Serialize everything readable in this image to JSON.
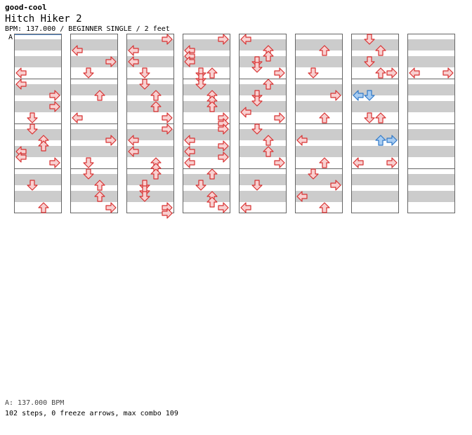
{
  "site": "good-cool",
  "song": {
    "title": "Hitch Hiker 2",
    "meta": "BPM: 137.000 / BEGINNER SINGLE / 2 feet",
    "bpm_marker": "A",
    "bpm_line": "A: 137.000 BPM",
    "summary": "102 steps, 0 freeze arrows, max combo 109"
  },
  "colors": {
    "normal_fill": "#f8d0d0",
    "normal_stroke": "#d83030",
    "special_fill": "#a9cdf2",
    "special_stroke": "#2f78c8",
    "band": "#cccccc",
    "border": "#666666"
  },
  "chart": {
    "columns": 8,
    "measures_per_column": 4,
    "rows_per_measure": 8,
    "lanes": [
      "left",
      "down",
      "up",
      "right"
    ],
    "notes": [
      {
        "col": 0,
        "row": 6,
        "lane": "left"
      },
      {
        "col": 0,
        "row": 8,
        "lane": "left"
      },
      {
        "col": 0,
        "row": 10,
        "lane": "right"
      },
      {
        "col": 0,
        "row": 12,
        "lane": "right"
      },
      {
        "col": 0,
        "row": 14,
        "lane": "down"
      },
      {
        "col": 0,
        "row": 16,
        "lane": "down"
      },
      {
        "col": 0,
        "row": 18,
        "lane": "up"
      },
      {
        "col": 0,
        "row": 19,
        "lane": "up"
      },
      {
        "col": 0,
        "row": 20,
        "lane": "left"
      },
      {
        "col": 0,
        "row": 21,
        "lane": "left"
      },
      {
        "col": 0,
        "row": 22,
        "lane": "right"
      },
      {
        "col": 0,
        "row": 26,
        "lane": "down"
      },
      {
        "col": 0,
        "row": 30,
        "lane": "up"
      },
      {
        "col": 1,
        "row": 2,
        "lane": "left"
      },
      {
        "col": 1,
        "row": 4,
        "lane": "right"
      },
      {
        "col": 1,
        "row": 6,
        "lane": "down"
      },
      {
        "col": 1,
        "row": 10,
        "lane": "up"
      },
      {
        "col": 1,
        "row": 14,
        "lane": "left"
      },
      {
        "col": 1,
        "row": 18,
        "lane": "right"
      },
      {
        "col": 1,
        "row": 22,
        "lane": "down"
      },
      {
        "col": 1,
        "row": 24,
        "lane": "down"
      },
      {
        "col": 1,
        "row": 26,
        "lane": "up"
      },
      {
        "col": 1,
        "row": 28,
        "lane": "up"
      },
      {
        "col": 1,
        "row": 30,
        "lane": "right"
      },
      {
        "col": 2,
        "row": 0,
        "lane": "right"
      },
      {
        "col": 2,
        "row": 2,
        "lane": "left"
      },
      {
        "col": 2,
        "row": 4,
        "lane": "left"
      },
      {
        "col": 2,
        "row": 6,
        "lane": "down"
      },
      {
        "col": 2,
        "row": 8,
        "lane": "down"
      },
      {
        "col": 2,
        "row": 10,
        "lane": "up"
      },
      {
        "col": 2,
        "row": 12,
        "lane": "up"
      },
      {
        "col": 2,
        "row": 14,
        "lane": "right"
      },
      {
        "col": 2,
        "row": 16,
        "lane": "right"
      },
      {
        "col": 2,
        "row": 18,
        "lane": "left"
      },
      {
        "col": 2,
        "row": 20,
        "lane": "left"
      },
      {
        "col": 2,
        "row": 22,
        "lane": "up"
      },
      {
        "col": 2,
        "row": 23,
        "lane": "up"
      },
      {
        "col": 2,
        "row": 24,
        "lane": "up"
      },
      {
        "col": 2,
        "row": 26,
        "lane": "down"
      },
      {
        "col": 2,
        "row": 27,
        "lane": "down"
      },
      {
        "col": 2,
        "row": 28,
        "lane": "down"
      },
      {
        "col": 2,
        "row": 30,
        "lane": "right"
      },
      {
        "col": 2,
        "row": 31,
        "lane": "right"
      },
      {
        "col": 3,
        "row": 0,
        "lane": "right"
      },
      {
        "col": 3,
        "row": 2,
        "lane": "left"
      },
      {
        "col": 3,
        "row": 3,
        "lane": "left"
      },
      {
        "col": 3,
        "row": 4,
        "lane": "left"
      },
      {
        "col": 3,
        "row": 6,
        "lane": "down"
      },
      {
        "col": 3,
        "row": 6,
        "lane": "up"
      },
      {
        "col": 3,
        "row": 7,
        "lane": "down"
      },
      {
        "col": 3,
        "row": 8,
        "lane": "down"
      },
      {
        "col": 3,
        "row": 10,
        "lane": "up"
      },
      {
        "col": 3,
        "row": 11,
        "lane": "up"
      },
      {
        "col": 3,
        "row": 12,
        "lane": "up"
      },
      {
        "col": 3,
        "row": 14,
        "lane": "right"
      },
      {
        "col": 3,
        "row": 15,
        "lane": "right"
      },
      {
        "col": 3,
        "row": 16,
        "lane": "right"
      },
      {
        "col": 3,
        "row": 18,
        "lane": "left"
      },
      {
        "col": 3,
        "row": 19,
        "lane": "right"
      },
      {
        "col": 3,
        "row": 20,
        "lane": "left"
      },
      {
        "col": 3,
        "row": 21,
        "lane": "right"
      },
      {
        "col": 3,
        "row": 22,
        "lane": "left"
      },
      {
        "col": 3,
        "row": 24,
        "lane": "up"
      },
      {
        "col": 3,
        "row": 26,
        "lane": "down"
      },
      {
        "col": 3,
        "row": 28,
        "lane": "up"
      },
      {
        "col": 3,
        "row": 29,
        "lane": "up"
      },
      {
        "col": 3,
        "row": 30,
        "lane": "right"
      },
      {
        "col": 4,
        "row": 0,
        "lane": "left"
      },
      {
        "col": 4,
        "row": 2,
        "lane": "up"
      },
      {
        "col": 4,
        "row": 3,
        "lane": "up"
      },
      {
        "col": 4,
        "row": 4,
        "lane": "down"
      },
      {
        "col": 4,
        "row": 5,
        "lane": "down"
      },
      {
        "col": 4,
        "row": 6,
        "lane": "right"
      },
      {
        "col": 4,
        "row": 8,
        "lane": "up"
      },
      {
        "col": 4,
        "row": 10,
        "lane": "down"
      },
      {
        "col": 4,
        "row": 11,
        "lane": "down"
      },
      {
        "col": 4,
        "row": 13,
        "lane": "left"
      },
      {
        "col": 4,
        "row": 14,
        "lane": "right"
      },
      {
        "col": 4,
        "row": 16,
        "lane": "down"
      },
      {
        "col": 4,
        "row": 18,
        "lane": "up"
      },
      {
        "col": 4,
        "row": 20,
        "lane": "up"
      },
      {
        "col": 4,
        "row": 22,
        "lane": "right"
      },
      {
        "col": 4,
        "row": 26,
        "lane": "down"
      },
      {
        "col": 4,
        "row": 30,
        "lane": "left"
      },
      {
        "col": 5,
        "row": 2,
        "lane": "up"
      },
      {
        "col": 5,
        "row": 6,
        "lane": "down"
      },
      {
        "col": 5,
        "row": 10,
        "lane": "right"
      },
      {
        "col": 5,
        "row": 14,
        "lane": "up"
      },
      {
        "col": 5,
        "row": 18,
        "lane": "left"
      },
      {
        "col": 5,
        "row": 22,
        "lane": "up"
      },
      {
        "col": 5,
        "row": 24,
        "lane": "down"
      },
      {
        "col": 5,
        "row": 26,
        "lane": "right"
      },
      {
        "col": 5,
        "row": 28,
        "lane": "left"
      },
      {
        "col": 5,
        "row": 30,
        "lane": "up"
      },
      {
        "col": 6,
        "row": 0,
        "lane": "down"
      },
      {
        "col": 6,
        "row": 2,
        "lane": "up"
      },
      {
        "col": 6,
        "row": 4,
        "lane": "down"
      },
      {
        "col": 6,
        "row": 6,
        "lane": "up"
      },
      {
        "col": 6,
        "row": 6,
        "lane": "right"
      },
      {
        "col": 6,
        "row": 10,
        "lane": "left",
        "special": true
      },
      {
        "col": 6,
        "row": 10,
        "lane": "down",
        "special": true
      },
      {
        "col": 6,
        "row": 14,
        "lane": "down"
      },
      {
        "col": 6,
        "row": 14,
        "lane": "up"
      },
      {
        "col": 6,
        "row": 18,
        "lane": "up",
        "special": true
      },
      {
        "col": 6,
        "row": 18,
        "lane": "right",
        "special": true
      },
      {
        "col": 6,
        "row": 22,
        "lane": "left"
      },
      {
        "col": 6,
        "row": 22,
        "lane": "right"
      },
      {
        "col": 7,
        "row": 6,
        "lane": "left"
      },
      {
        "col": 7,
        "row": 6,
        "lane": "right"
      }
    ]
  }
}
